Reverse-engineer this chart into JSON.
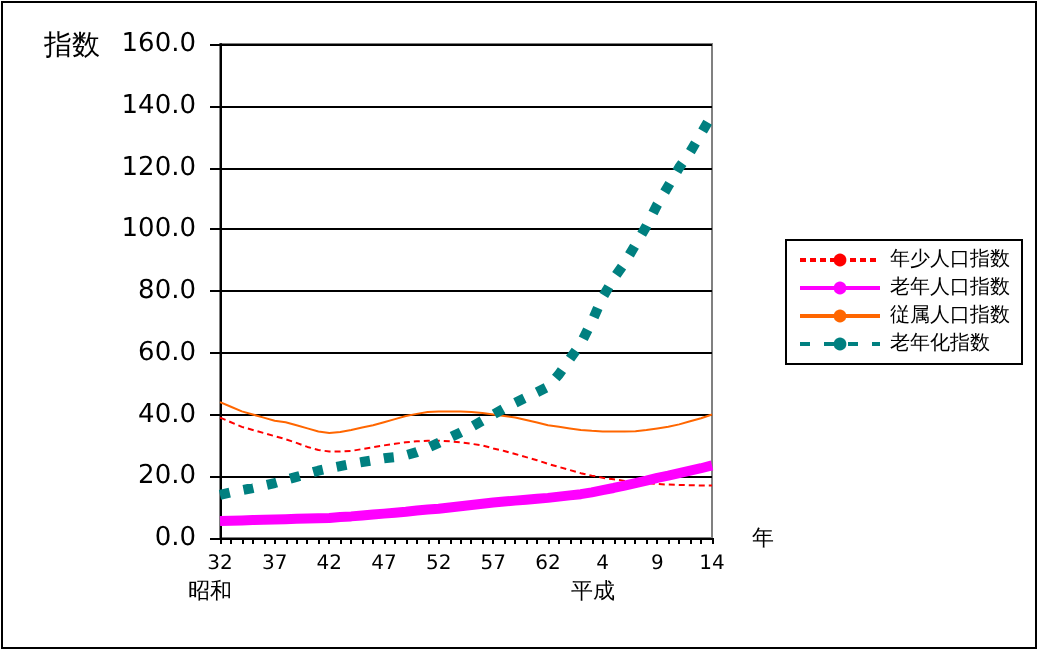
{
  "chart_data": {
    "type": "line",
    "ylabel": "指数",
    "xlabel": "年",
    "annotations": [
      "昭和",
      "平成"
    ],
    "categories": [
      "32",
      null,
      null,
      null,
      null,
      "37",
      null,
      null,
      null,
      null,
      "42",
      null,
      null,
      null,
      null,
      "47",
      null,
      null,
      null,
      null,
      "52",
      null,
      null,
      null,
      null,
      "57",
      null,
      null,
      null,
      null,
      "62",
      null,
      null,
      null,
      null,
      "4",
      null,
      null,
      null,
      null,
      "9",
      null,
      null,
      null,
      null,
      "14"
    ],
    "ylim": [
      0,
      160
    ],
    "yticks": [
      {
        "value": 0,
        "label": "0.0"
      },
      {
        "value": 20,
        "label": "20.0"
      },
      {
        "value": 40,
        "label": "40.0"
      },
      {
        "value": 60,
        "label": "60.0"
      },
      {
        "value": 80,
        "label": "80.0"
      },
      {
        "value": 100,
        "label": "100.0"
      },
      {
        "value": 120,
        "label": "120.0"
      },
      {
        "value": 140,
        "label": "140.0"
      },
      {
        "value": 160,
        "label": "160.0"
      }
    ],
    "grid": "y",
    "legend": "right",
    "marker": "none",
    "series": [
      {
        "name": "年少人口指数",
        "color": "#ff0000",
        "line_style": "dashed",
        "values": [
          39.0,
          37.5,
          36.0,
          35.0,
          34.0,
          33.0,
          32.0,
          30.8,
          29.5,
          28.5,
          28.0,
          28.0,
          28.2,
          28.8,
          29.4,
          30.0,
          30.5,
          31.0,
          31.3,
          31.5,
          31.5,
          31.3,
          31.0,
          30.5,
          30.0,
          29.0,
          28.2,
          27.2,
          26.2,
          25.2,
          24.0,
          23.0,
          22.0,
          21.0,
          20.2,
          19.5,
          19.0,
          18.5,
          18.2,
          17.8,
          17.5,
          17.3,
          17.2,
          17.1,
          17.0,
          17.0
        ]
      },
      {
        "name": "老年人口指数",
        "color": "#ff00ff",
        "line_style": "solid",
        "values": [
          5.5,
          5.6,
          5.7,
          5.8,
          5.9,
          6.0,
          6.1,
          6.2,
          6.3,
          6.4,
          6.5,
          6.8,
          7.0,
          7.3,
          7.6,
          7.9,
          8.2,
          8.5,
          8.9,
          9.2,
          9.5,
          9.9,
          10.3,
          10.7,
          11.1,
          11.5,
          11.8,
          12.1,
          12.4,
          12.7,
          13.0,
          13.4,
          13.8,
          14.2,
          14.8,
          15.5,
          16.2,
          17.0,
          17.8,
          18.6,
          19.5,
          20.2,
          21.0,
          21.8,
          22.6,
          23.5
        ]
      },
      {
        "name": "従属人口指数",
        "color": "#ff6600",
        "line_style": "solid",
        "values": [
          44.0,
          42.5,
          41.0,
          40.0,
          39.0,
          38.0,
          37.5,
          36.5,
          35.5,
          34.5,
          34.0,
          34.3,
          35.0,
          35.8,
          36.5,
          37.5,
          38.5,
          39.5,
          40.2,
          40.8,
          41.0,
          41.0,
          41.0,
          40.8,
          40.5,
          40.0,
          39.5,
          39.0,
          38.2,
          37.4,
          36.5,
          36.0,
          35.5,
          35.0,
          34.7,
          34.5,
          34.5,
          34.5,
          34.6,
          35.0,
          35.5,
          36.0,
          36.8,
          37.8,
          38.8,
          40.0
        ]
      },
      {
        "name": "老年化指数",
        "color": "#008080",
        "line_style": "dashed",
        "values": [
          14.0,
          14.8,
          15.5,
          16.2,
          17.0,
          17.8,
          18.8,
          19.8,
          20.8,
          21.8,
          22.6,
          23.3,
          24.0,
          24.6,
          25.2,
          25.8,
          26.2,
          26.8,
          27.8,
          29.2,
          30.8,
          32.5,
          34.2,
          36.0,
          38.0,
          40.0,
          42.0,
          43.8,
          45.5,
          47.2,
          49.0,
          53.0,
          58.0,
          63.0,
          70.0,
          78.0,
          84.0,
          89.0,
          95.0,
          101.0,
          108.0,
          114.0,
          120.0,
          125.0,
          131.0,
          137.0
        ]
      }
    ]
  }
}
